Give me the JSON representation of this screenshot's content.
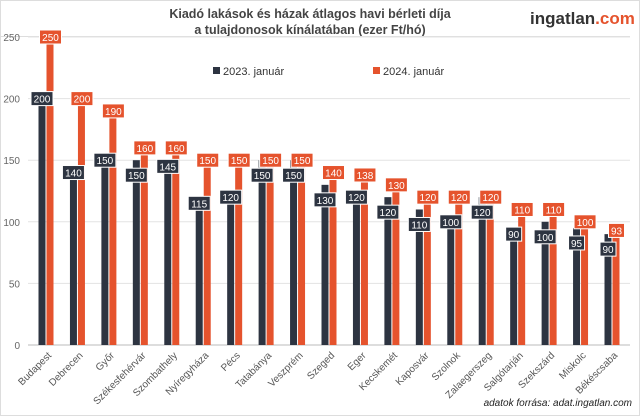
{
  "header": {
    "title_line1": "Kiadó lakások és házak átlagos havi bérleti díja",
    "title_line2": "a tulajdonosok kínálatában (ezer Ft/hó)",
    "logo_main": "ingatlan",
    "logo_suffix": ".com"
  },
  "source": "adatok forrása: adat.ingatlan.com",
  "chart_data": {
    "type": "bar",
    "title": "Kiadó lakások és házak átlagos havi bérleti díja a tulajdonosok kínálatában (ezer Ft/hó)",
    "categories": [
      "Budapest",
      "Debrecen",
      "Győr",
      "Székesfehérvár",
      "Szombathely",
      "Nyíregyháza",
      "Pécs",
      "Tatabánya",
      "Veszprém",
      "Szeged",
      "Eger",
      "Kecskemét",
      "Kaposvár",
      "Szolnok",
      "Zalaegerszeg",
      "Salgótarján",
      "Szekszárd",
      "Miskolc",
      "Békéscsaba"
    ],
    "series": [
      {
        "name": "2023. január",
        "color": "#2d3441",
        "values": [
          200,
          140,
          150,
          150,
          145,
          115,
          120,
          150,
          150,
          130,
          120,
          120,
          110,
          100,
          120,
          90,
          100,
          95,
          90
        ]
      },
      {
        "name": "2024. január",
        "color": "#e5532d",
        "values": [
          250,
          200,
          190,
          160,
          160,
          150,
          150,
          150,
          150,
          140,
          138,
          130,
          120,
          120,
          120,
          110,
          110,
          100,
          93
        ]
      }
    ],
    "yticks": [
      0,
      50,
      100,
      150,
      200,
      250
    ],
    "ylim": [
      0,
      250
    ],
    "grid": true,
    "legend": "top"
  }
}
